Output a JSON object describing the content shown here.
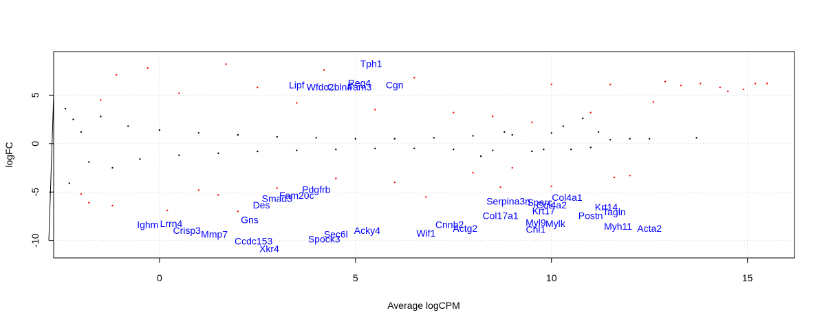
{
  "chart_data": {
    "type": "scatter",
    "title": "",
    "xlabel": "Average logCPM",
    "ylabel": "logFC",
    "xlim": [
      -2.7,
      16.2
    ],
    "ylim": [
      -11.8,
      9.5
    ],
    "x_ticks": [
      0,
      5,
      10,
      15
    ],
    "y_ticks": [
      -10,
      -5,
      0,
      5
    ],
    "grid": true,
    "grid_style": "dotted",
    "colors": {
      "non_significant": "#000000",
      "significant": "#ff0000",
      "highlighted_label": "#0000ff"
    },
    "series": [
      {
        "group": "non_significant",
        "color": "#000000",
        "description_points": "dense band around logFC 0",
        "points": [
          [
            -2.4,
            3.6
          ],
          [
            -2.2,
            2.5
          ],
          [
            -2.3,
            -4.1
          ],
          [
            -2.0,
            1.2
          ],
          [
            -1.8,
            -1.9
          ],
          [
            -1.5,
            2.8
          ],
          [
            -1.2,
            -2.5
          ],
          [
            -0.8,
            1.8
          ],
          [
            -0.5,
            -1.6
          ],
          [
            0.0,
            1.4
          ],
          [
            0.5,
            -1.2
          ],
          [
            1.0,
            1.1
          ],
          [
            1.5,
            -1.0
          ],
          [
            2.0,
            0.9
          ],
          [
            2.5,
            -0.8
          ],
          [
            3.0,
            0.7
          ],
          [
            3.5,
            -0.7
          ],
          [
            4.0,
            0.6
          ],
          [
            4.5,
            -0.6
          ],
          [
            5.0,
            0.5
          ],
          [
            5.5,
            -0.5
          ],
          [
            6.0,
            0.5
          ],
          [
            6.5,
            -0.5
          ],
          [
            7.0,
            0.6
          ],
          [
            7.5,
            -0.6
          ],
          [
            8.0,
            0.8
          ],
          [
            8.5,
            -0.7
          ],
          [
            9.0,
            0.9
          ],
          [
            9.5,
            -0.8
          ],
          [
            10.0,
            1.1
          ],
          [
            10.5,
            -0.6
          ],
          [
            10.8,
            2.6
          ],
          [
            11.0,
            -0.4
          ],
          [
            11.5,
            0.4
          ],
          [
            12.0,
            0.5
          ],
          [
            12.5,
            0.5
          ],
          [
            13.7,
            0.6
          ],
          [
            11.2,
            1.2
          ],
          [
            10.3,
            1.8
          ],
          [
            9.8,
            -0.6
          ],
          [
            8.8,
            1.2
          ],
          [
            8.2,
            -1.3
          ]
        ]
      },
      {
        "group": "significant",
        "color": "#ff0000",
        "description_points": "red points with large absolute logFC",
        "points": [
          [
            -1.1,
            7.1
          ],
          [
            -0.3,
            7.8
          ],
          [
            1.7,
            8.2
          ],
          [
            4.2,
            7.6
          ],
          [
            6.5,
            6.8
          ],
          [
            10.0,
            6.1
          ],
          [
            11.5,
            6.1
          ],
          [
            12.9,
            6.4
          ],
          [
            13.8,
            6.2
          ],
          [
            14.3,
            5.8
          ],
          [
            14.5,
            5.4
          ],
          [
            15.2,
            6.2
          ],
          [
            15.5,
            6.2
          ],
          [
            14.9,
            5.6
          ],
          [
            13.3,
            6.0
          ],
          [
            12.6,
            4.3
          ],
          [
            11.0,
            3.2
          ],
          [
            9.5,
            2.2
          ],
          [
            -2.0,
            -5.2
          ],
          [
            -1.8,
            -6.1
          ],
          [
            -1.2,
            -6.4
          ],
          [
            0.2,
            -6.9
          ],
          [
            1.5,
            -5.3
          ],
          [
            3.0,
            -4.6
          ],
          [
            4.5,
            -3.6
          ],
          [
            6.0,
            -4.0
          ],
          [
            8.0,
            -3.0
          ],
          [
            9.0,
            -2.5
          ],
          [
            10.0,
            -4.4
          ],
          [
            11.6,
            -3.5
          ],
          [
            12.0,
            -3.3
          ],
          [
            -1.5,
            4.5
          ],
          [
            0.5,
            5.2
          ],
          [
            2.5,
            5.8
          ],
          [
            3.5,
            4.2
          ],
          [
            5.5,
            3.5
          ],
          [
            7.5,
            3.2
          ],
          [
            8.5,
            2.8
          ],
          [
            1.0,
            -4.8
          ],
          [
            2.0,
            -7.0
          ],
          [
            6.8,
            -5.5
          ],
          [
            8.7,
            -4.5
          ]
        ]
      }
    ],
    "labeled_genes": [
      {
        "name": "Tph1",
        "x": 5.4,
        "y": 7.9
      },
      {
        "name": "Reg4",
        "x": 5.1,
        "y": 5.9
      },
      {
        "name": "Cgn",
        "x": 6.0,
        "y": 5.7
      },
      {
        "name": "Lipf",
        "x": 3.5,
        "y": 5.7
      },
      {
        "name": "Wfdc2",
        "x": 4.1,
        "y": 5.5
      },
      {
        "name": "Cbln4",
        "x": 4.6,
        "y": 5.5
      },
      {
        "name": "Fam3",
        "x": 5.1,
        "y": 5.5
      },
      {
        "name": "Smad3",
        "x": 3.0,
        "y": -6.0
      },
      {
        "name": "Fam20c",
        "x": 3.5,
        "y": -5.7
      },
      {
        "name": "Pdgfrb",
        "x": 4.0,
        "y": -5.1
      },
      {
        "name": "Col4a1",
        "x": 10.4,
        "y": -5.9
      },
      {
        "name": "Sparc",
        "x": 9.7,
        "y": -6.4
      },
      {
        "name": "Serpina3n",
        "x": 8.9,
        "y": -6.3
      },
      {
        "name": "Col4a2",
        "x": 10.0,
        "y": -6.7
      },
      {
        "name": "Krt14",
        "x": 11.4,
        "y": -6.9
      },
      {
        "name": "Tagln",
        "x": 11.6,
        "y": -7.4
      },
      {
        "name": "Krt17",
        "x": 9.8,
        "y": -7.3
      },
      {
        "name": "Postn",
        "x": 11.0,
        "y": -7.8
      },
      {
        "name": "Myh11",
        "x": 11.7,
        "y": -8.9
      },
      {
        "name": "Acta2",
        "x": 12.5,
        "y": -9.1
      },
      {
        "name": "Myl9",
        "x": 9.6,
        "y": -8.5
      },
      {
        "name": "Chl1",
        "x": 9.6,
        "y": -9.2
      },
      {
        "name": "Mylk",
        "x": 10.1,
        "y": -8.6
      },
      {
        "name": "Col17a1",
        "x": 8.7,
        "y": -7.8
      },
      {
        "name": "Des",
        "x": 2.6,
        "y": -6.7
      },
      {
        "name": "Gns",
        "x": 2.3,
        "y": -8.2
      },
      {
        "name": "Lrrn4",
        "x": 0.3,
        "y": -8.6
      },
      {
        "name": "Ighm",
        "x": -0.3,
        "y": -8.7
      },
      {
        "name": "Crisp3",
        "x": 0.7,
        "y": -9.3
      },
      {
        "name": "Mmp7",
        "x": 1.4,
        "y": -9.7
      },
      {
        "name": "Ccdc153",
        "x": 2.4,
        "y": -10.4
      },
      {
        "name": "Xkr4",
        "x": 2.8,
        "y": -11.2
      },
      {
        "name": "Spock3",
        "x": 4.2,
        "y": -10.2
      },
      {
        "name": "Sec6l",
        "x": 4.5,
        "y": -9.7
      },
      {
        "name": "Acky4",
        "x": 5.3,
        "y": -9.3
      },
      {
        "name": "Wif1",
        "x": 6.8,
        "y": -9.6
      },
      {
        "name": "Actg2",
        "x": 7.8,
        "y": -9.1
      },
      {
        "name": "Cnnb2",
        "x": 7.4,
        "y": -8.7
      }
    ]
  }
}
